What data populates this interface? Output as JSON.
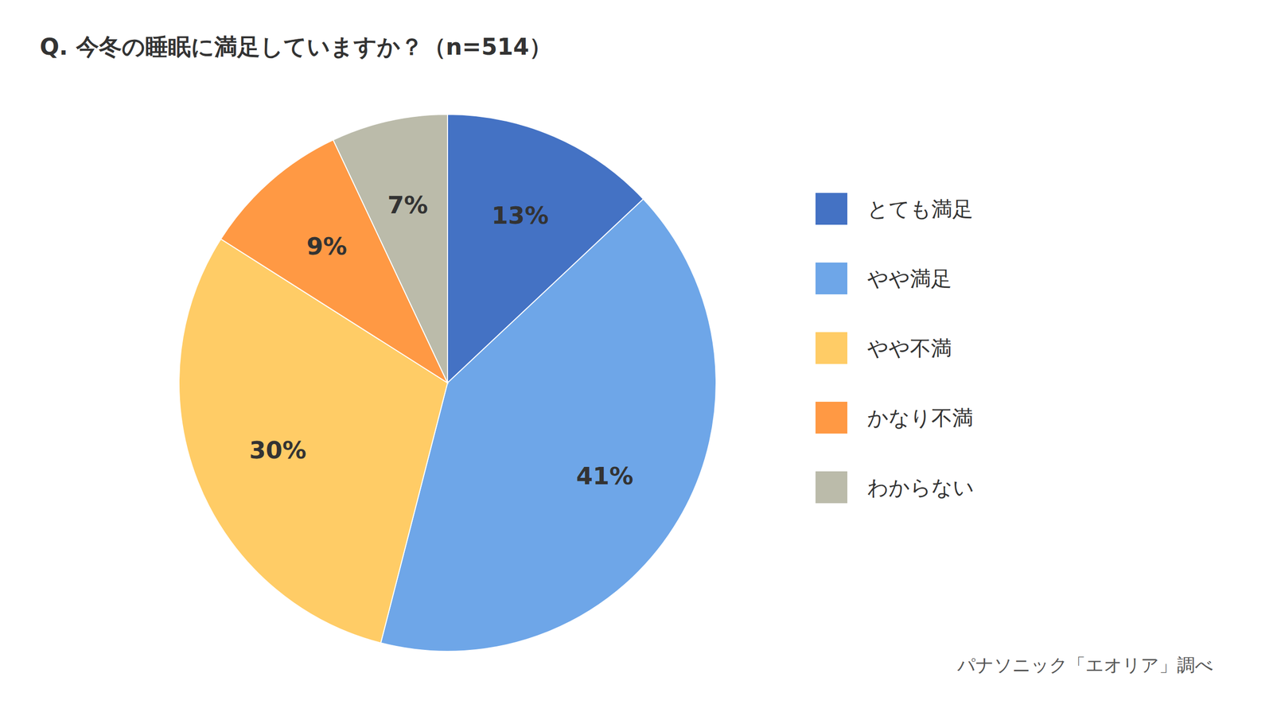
{
  "chart_data": {
    "type": "pie",
    "title": "Q. 今冬の睡眠に満足していますか？（n=514）",
    "categories": [
      "とても満足",
      "やや満足",
      "やや不満",
      "かなり不満",
      "わからない"
    ],
    "values": [
      13,
      41,
      30,
      9,
      7
    ],
    "value_labels": [
      "13%",
      "41%",
      "30%",
      "9%",
      "7%"
    ],
    "colors": [
      "#4472C4",
      "#6EA6E8",
      "#FFCC66",
      "#FF9944",
      "#BBBBAA"
    ],
    "data_labels": true,
    "legend": "right",
    "annotations": [
      "パナソニック「エオリア」調べ"
    ]
  }
}
